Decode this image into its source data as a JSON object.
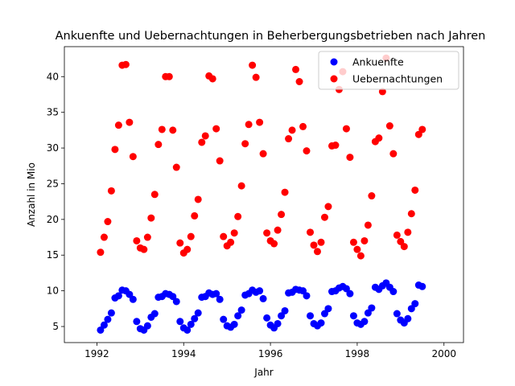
{
  "chart_data": {
    "type": "scatter",
    "title": "Ankuenfte und Uebernachtungen in Beherbergungsbetrieben nach Jahren",
    "xlabel": "Jahr",
    "ylabel": "Anzahl in Mio",
    "xlim": [
      1991.25,
      2000.45
    ],
    "ylim": [
      2.75,
      44.2
    ],
    "xticks": [
      1992,
      1994,
      1996,
      1998,
      2000
    ],
    "xtick_labels": [
      "1992",
      "1994",
      "1996",
      "1998",
      "2000"
    ],
    "yticks": [
      5,
      10,
      15,
      20,
      25,
      30,
      35,
      40
    ],
    "ytick_labels": [
      "5",
      "10",
      "15",
      "20",
      "25",
      "30",
      "35",
      "40"
    ],
    "grid": false,
    "legend": "top-right",
    "colors": {
      "Ankuenfte": "#0000ff",
      "Uebernachtungen": "#ff0000"
    },
    "series": [
      {
        "name": "Ankuenfte",
        "x": [
          1992.083,
          1992.167,
          1992.25,
          1992.333,
          1992.417,
          1992.5,
          1992.583,
          1992.667,
          1992.75,
          1992.833,
          1992.917,
          1993.0,
          1993.083,
          1993.167,
          1993.25,
          1993.333,
          1993.417,
          1993.5,
          1993.583,
          1993.667,
          1993.75,
          1993.833,
          1993.917,
          1994.0,
          1994.083,
          1994.167,
          1994.25,
          1994.333,
          1994.417,
          1994.5,
          1994.583,
          1994.667,
          1994.75,
          1994.833,
          1994.917,
          1995.0,
          1995.083,
          1995.167,
          1995.25,
          1995.333,
          1995.417,
          1995.5,
          1995.583,
          1995.667,
          1995.75,
          1995.833,
          1995.917,
          1996.0,
          1996.083,
          1996.167,
          1996.25,
          1996.333,
          1996.417,
          1996.5,
          1996.583,
          1996.667,
          1996.75,
          1996.833,
          1996.917,
          1997.0,
          1997.083,
          1997.167,
          1997.25,
          1997.333,
          1997.417,
          1997.5,
          1997.583,
          1997.667,
          1997.75,
          1997.833,
          1997.917,
          1998.0,
          1998.083,
          1998.167,
          1998.25,
          1998.333,
          1998.417,
          1998.5,
          1998.583,
          1998.667,
          1998.75,
          1998.833,
          1998.917,
          1999.0,
          1999.083,
          1999.167,
          1999.25,
          1999.333,
          1999.417,
          1999.5
        ],
        "y": [
          4.5,
          5.2,
          6.0,
          6.9,
          9.0,
          9.3,
          10.1,
          10.0,
          9.5,
          8.8,
          5.7,
          4.7,
          4.5,
          5.1,
          6.3,
          6.8,
          9.1,
          9.2,
          9.6,
          9.5,
          9.2,
          8.5,
          5.7,
          4.8,
          4.5,
          5.3,
          6.1,
          6.9,
          9.1,
          9.2,
          9.7,
          9.5,
          9.6,
          8.8,
          6.0,
          5.1,
          4.9,
          5.3,
          6.5,
          7.3,
          9.4,
          9.6,
          10.1,
          9.8,
          10.0,
          8.9,
          6.2,
          5.2,
          4.8,
          5.4,
          6.5,
          7.2,
          9.7,
          9.8,
          10.2,
          10.1,
          10.0,
          9.3,
          6.5,
          5.4,
          5.1,
          5.5,
          6.8,
          7.5,
          9.9,
          10.0,
          10.4,
          10.6,
          10.3,
          9.6,
          6.5,
          5.5,
          5.3,
          5.7,
          6.9,
          7.6,
          10.5,
          10.2,
          10.7,
          11.1,
          10.5,
          9.9,
          6.8,
          5.9,
          5.5,
          6.1,
          7.5,
          8.2,
          10.8,
          10.6
        ]
      },
      {
        "name": "Uebernachtungen",
        "x": [
          1992.083,
          1992.167,
          1992.25,
          1992.333,
          1992.417,
          1992.5,
          1992.583,
          1992.667,
          1992.75,
          1992.833,
          1992.917,
          1993.0,
          1993.083,
          1993.167,
          1993.25,
          1993.333,
          1993.417,
          1993.5,
          1993.583,
          1993.667,
          1993.75,
          1993.833,
          1993.917,
          1994.0,
          1994.083,
          1994.167,
          1994.25,
          1994.333,
          1994.417,
          1994.5,
          1994.583,
          1994.667,
          1994.75,
          1994.833,
          1994.917,
          1995.0,
          1995.083,
          1995.167,
          1995.25,
          1995.333,
          1995.417,
          1995.5,
          1995.583,
          1995.667,
          1995.75,
          1995.833,
          1995.917,
          1996.0,
          1996.083,
          1996.167,
          1996.25,
          1996.333,
          1996.417,
          1996.5,
          1996.583,
          1996.667,
          1996.75,
          1996.833,
          1996.917,
          1997.0,
          1997.083,
          1997.167,
          1997.25,
          1997.333,
          1997.417,
          1997.5,
          1997.583,
          1997.667,
          1997.75,
          1997.833,
          1997.917,
          1998.0,
          1998.083,
          1998.167,
          1998.25,
          1998.333,
          1998.417,
          1998.5,
          1998.583,
          1998.667,
          1998.75,
          1998.833,
          1998.917,
          1999.0,
          1999.083,
          1999.167,
          1999.25,
          1999.333,
          1999.417,
          1999.5
        ],
        "y": [
          15.4,
          17.5,
          19.7,
          24.0,
          29.8,
          33.2,
          41.6,
          41.7,
          33.6,
          28.8,
          17.0,
          16.0,
          15.8,
          17.5,
          20.2,
          23.5,
          30.5,
          32.6,
          40.0,
          40.0,
          32.5,
          27.3,
          16.7,
          15.3,
          15.8,
          17.6,
          20.5,
          22.8,
          30.8,
          31.7,
          40.1,
          39.7,
          32.7,
          28.2,
          17.6,
          16.3,
          16.8,
          18.1,
          20.4,
          24.7,
          30.6,
          33.3,
          41.6,
          39.9,
          33.6,
          29.2,
          18.1,
          17.0,
          16.6,
          18.5,
          20.7,
          23.8,
          31.3,
          32.5,
          41.0,
          39.3,
          33.0,
          29.6,
          18.2,
          16.4,
          15.5,
          16.8,
          20.3,
          21.8,
          30.3,
          30.4,
          38.2,
          40.7,
          32.7,
          28.7,
          16.8,
          15.8,
          14.9,
          17.0,
          19.2,
          23.3,
          30.9,
          31.4,
          37.9,
          42.6,
          33.1,
          29.2,
          17.8,
          16.9,
          16.2,
          18.2,
          20.8,
          24.1,
          31.9,
          32.6
        ]
      }
    ]
  }
}
